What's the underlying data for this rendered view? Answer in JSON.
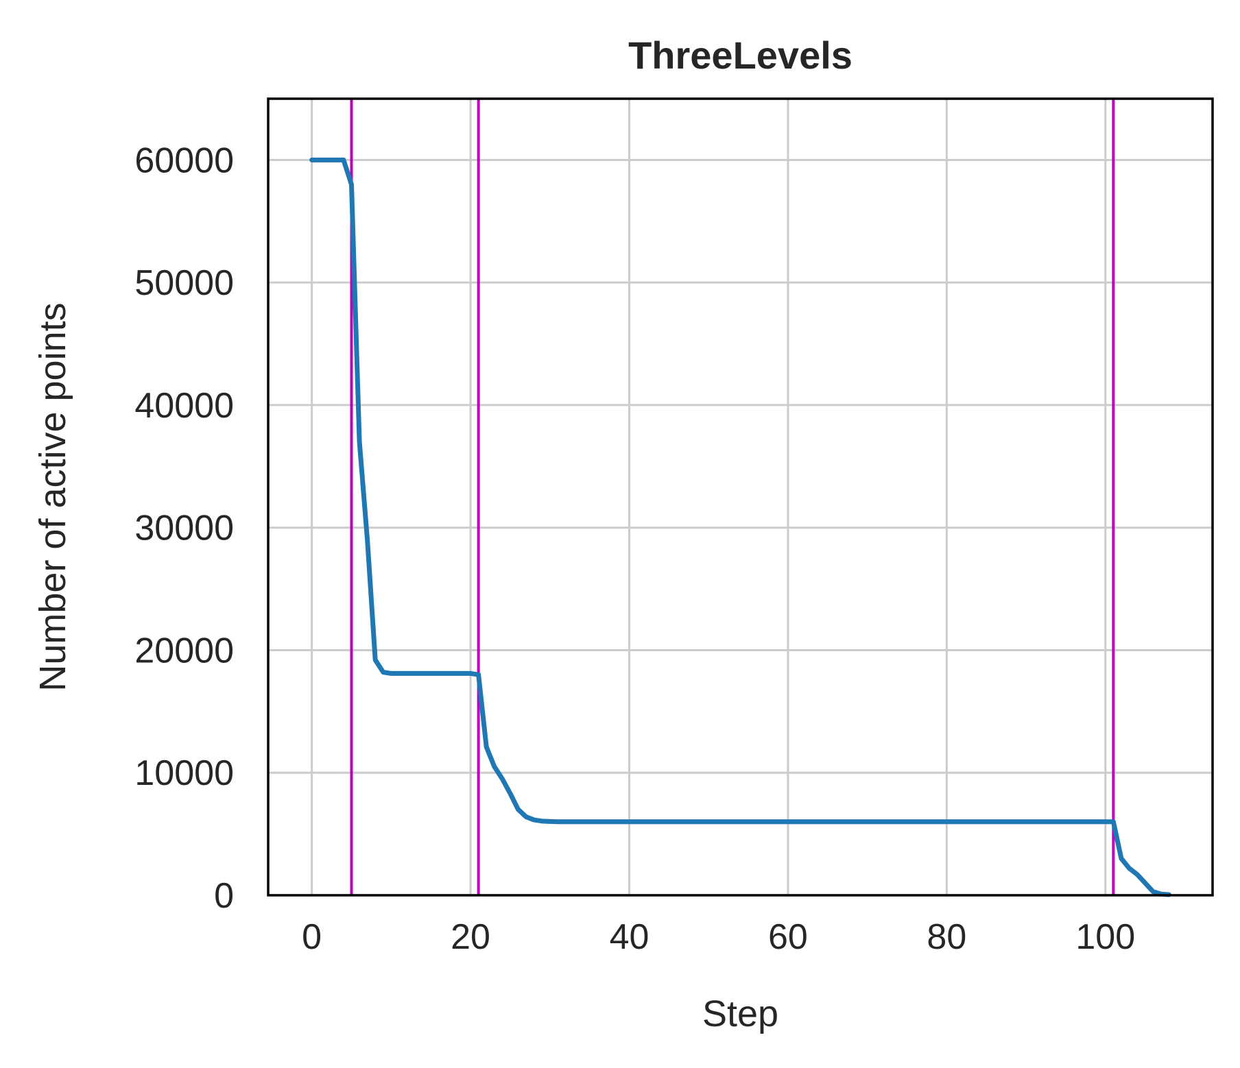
{
  "chart_data": {
    "type": "line",
    "title": "ThreeLevels",
    "xlabel": "Step",
    "ylabel": "Number of active points",
    "xlim": [
      -5.5,
      113.5
    ],
    "ylim": [
      0,
      65000
    ],
    "xticks": [
      0,
      20,
      40,
      60,
      80,
      100
    ],
    "yticks": [
      0,
      10000,
      20000,
      30000,
      40000,
      50000,
      60000
    ],
    "grid": true,
    "series": [
      {
        "color": "#1f77b4",
        "x": [
          0,
          1,
          2,
          3,
          4,
          5,
          6,
          7,
          8,
          9,
          10,
          11,
          12,
          13,
          14,
          15,
          16,
          17,
          18,
          19,
          20,
          21,
          22,
          23,
          24,
          25,
          26,
          27,
          28,
          29,
          30,
          31,
          32,
          33,
          34,
          35,
          40,
          50,
          60,
          70,
          80,
          90,
          100,
          101,
          102,
          103,
          104,
          105,
          106,
          107,
          108
        ],
        "y": [
          60000,
          60000,
          60000,
          60000,
          60000,
          58000,
          37000,
          29000,
          19200,
          18200,
          18100,
          18100,
          18100,
          18100,
          18100,
          18100,
          18100,
          18100,
          18100,
          18100,
          18100,
          18000,
          12100,
          10500,
          9500,
          8300,
          7000,
          6400,
          6150,
          6050,
          6020,
          6000,
          6000,
          6000,
          6000,
          6000,
          6000,
          6000,
          6000,
          6000,
          6000,
          6000,
          6000,
          6000,
          3000,
          2200,
          1700,
          1000,
          300,
          100,
          50
        ]
      }
    ],
    "vlines": {
      "color": "#bf00bf",
      "x": [
        5,
        21,
        101
      ]
    }
  }
}
